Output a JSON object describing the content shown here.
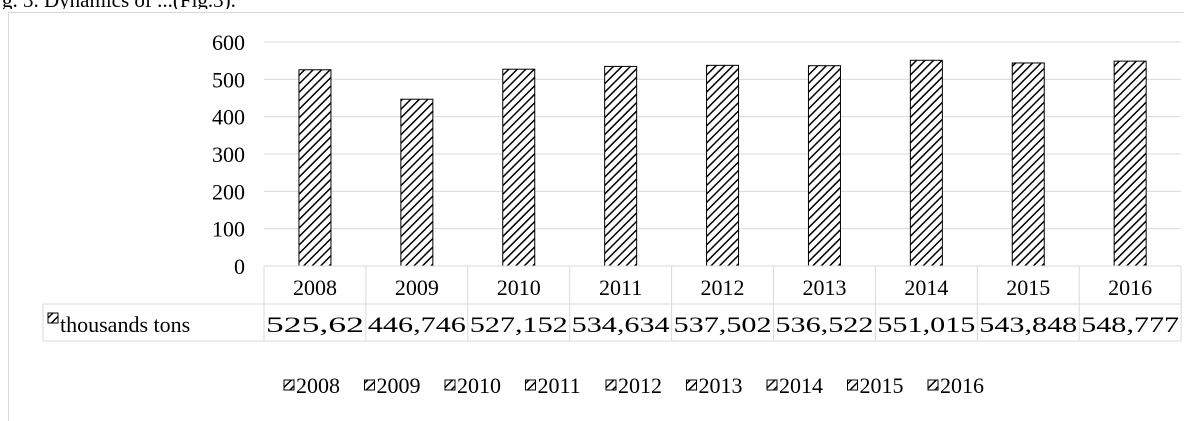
{
  "caption": "g. 3. Dynamics of ...(Fig.3).",
  "chart_data": {
    "type": "bar",
    "categories": [
      "2008",
      "2009",
      "2010",
      "2011",
      "2012",
      "2013",
      "2014",
      "2015",
      "2016"
    ],
    "series": [
      {
        "name": "thousands tons",
        "values": [
          525.62,
          446.746,
          527.152,
          534.634,
          537.502,
          536.522,
          551.015,
          543.848,
          548.777
        ],
        "labels": [
          "525,62",
          "446,746",
          "527,152",
          "534,634",
          "537,502",
          "536,522",
          "551,015",
          "543,848",
          "548,777"
        ]
      }
    ],
    "title": "",
    "xlabel": "",
    "ylabel": "",
    "ylim": [
      0,
      600
    ],
    "yticks": [
      "0",
      "100",
      "200",
      "300",
      "400",
      "500",
      "600"
    ],
    "grid": true,
    "data_table": true,
    "legend": {
      "placement": "bottom",
      "entries": [
        "2008",
        "2009",
        "2010",
        "2011",
        "2012",
        "2013",
        "2014",
        "2015",
        "2016"
      ]
    },
    "fill_pattern": "diagonal-hatch",
    "colors": {
      "bar_fill": "#ffffff",
      "bar_hatch": "#000000",
      "gridline": "#d9d9d9",
      "table_border": "#d9d9d9"
    }
  }
}
